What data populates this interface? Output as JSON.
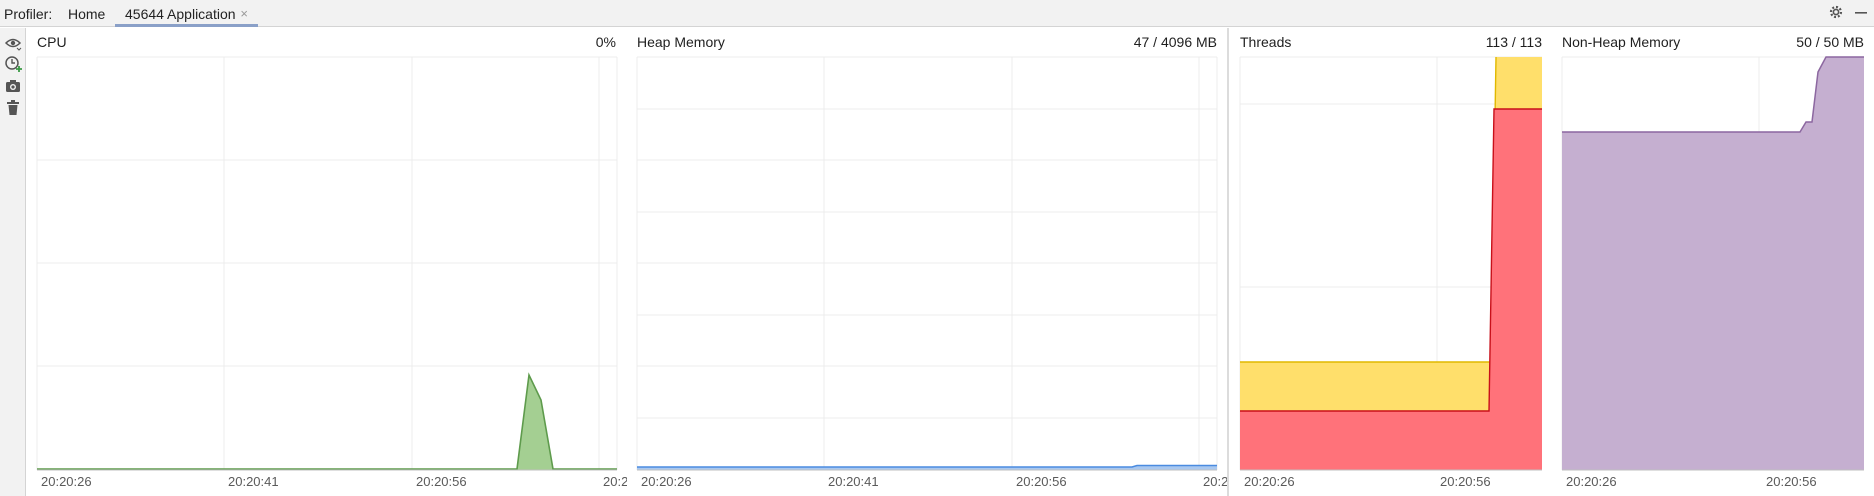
{
  "header": {
    "profiler_label": "Profiler:",
    "tabs": [
      {
        "label": "Home"
      },
      {
        "label": "45644 Application"
      }
    ],
    "close_glyph": "×",
    "settings_icon": "gear-icon",
    "minimize_icon": "minus-icon"
  },
  "toolbar": {
    "items": [
      "eye-icon",
      "clock-add-icon",
      "camera-icon",
      "trash-icon"
    ]
  },
  "colors": {
    "cpu": "#5e9b4c",
    "cpu_fill": "#a4cf92",
    "heap": "#4a8be0",
    "threads_yellow": "#ffdf6b",
    "threads_red": "#ff727a",
    "nonheap": "#c5afd0",
    "nonheap_line": "#8c67a0"
  },
  "panels": {
    "cpu": {
      "title": "CPU",
      "value": "0%",
      "ticks": [
        "20:20:26",
        "20:20:41",
        "20:20:56",
        "20:2"
      ]
    },
    "heap": {
      "title": "Heap Memory",
      "value": "47 / 4096 MB",
      "ticks": [
        "20:20:26",
        "20:20:41",
        "20:20:56",
        "20:2"
      ]
    },
    "threads": {
      "title": "Threads",
      "value": "113 / 113",
      "ticks": [
        "20:20:26",
        "20:20:56"
      ]
    },
    "nonheap": {
      "title": "Non-Heap Memory",
      "value": "50 / 50 MB",
      "ticks": [
        "20:20:26",
        "20:20:56"
      ]
    }
  }
}
